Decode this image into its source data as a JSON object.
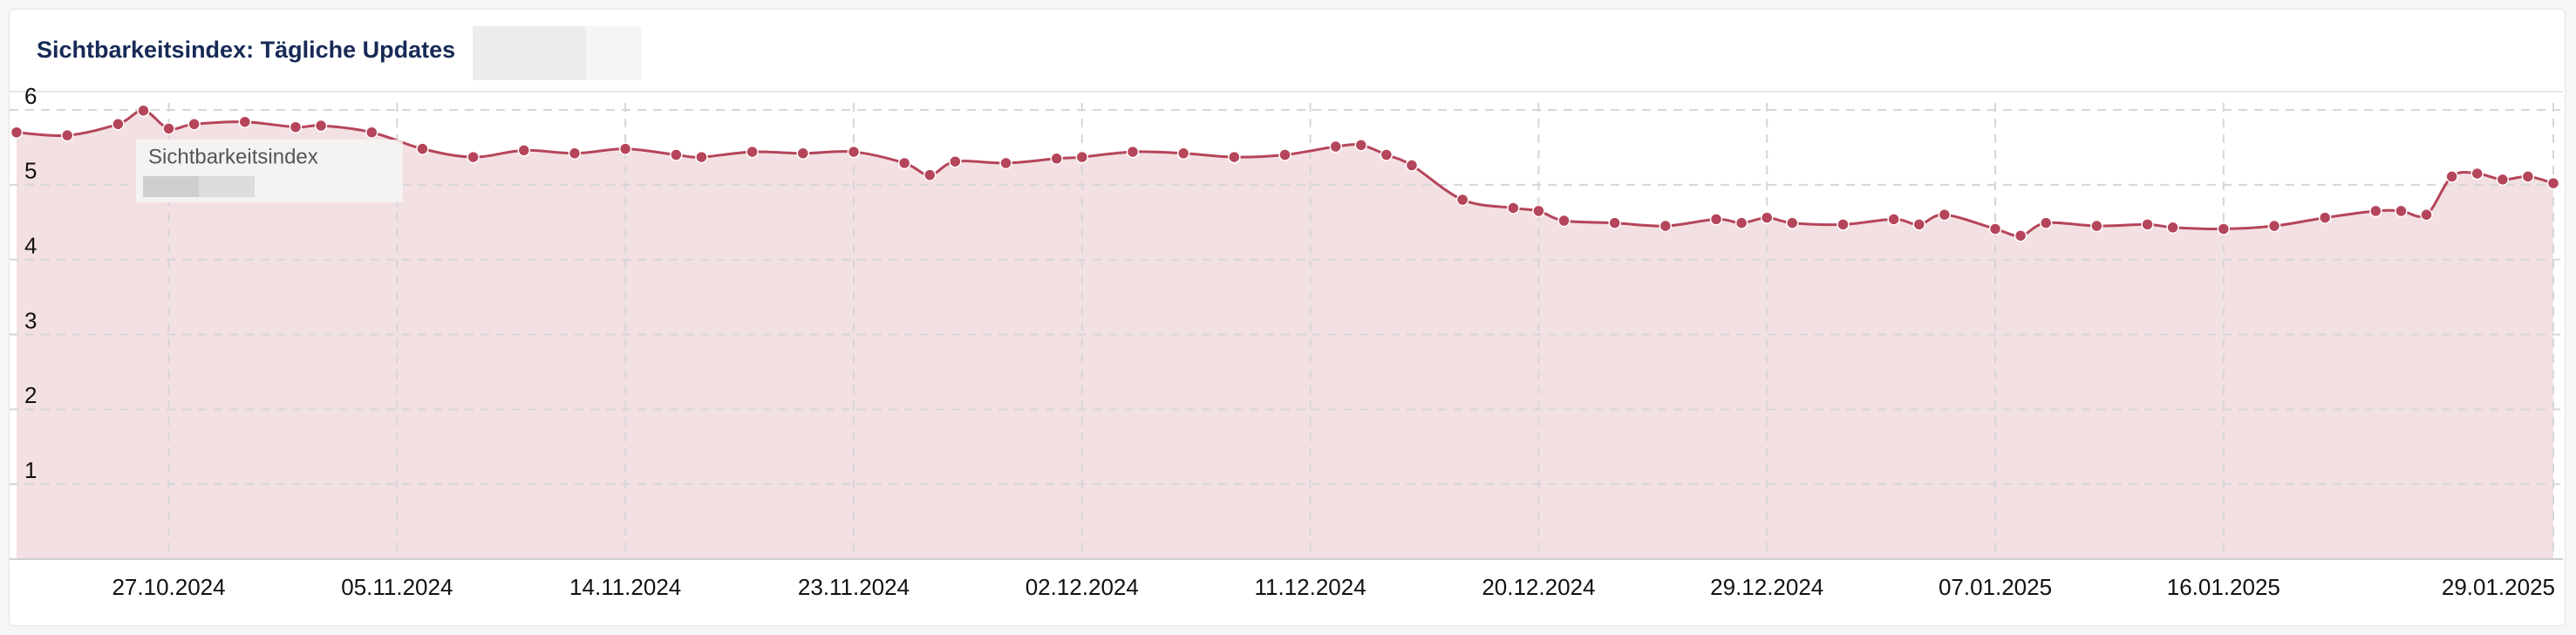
{
  "chart_data": {
    "type": "area",
    "title": "Sichtbarkeitsindex: Tägliche Updates",
    "series": [
      {
        "name": "Sichtbarkeitsindex",
        "color": "#b5455a",
        "x": [
          "21.10.2024",
          "23.10.2024",
          "25.10.2024",
          "26.10.2024",
          "27.10.2024",
          "28.10.2024",
          "30.10.2024",
          "01.11.2024",
          "02.11.2024",
          "04.11.2024",
          "06.11.2024",
          "08.11.2024",
          "10.11.2024",
          "12.11.2024",
          "14.11.2024",
          "16.11.2024",
          "17.11.2024",
          "19.11.2024",
          "21.11.2024",
          "23.11.2024",
          "25.11.2024",
          "26.11.2024",
          "27.11.2024",
          "29.11.2024",
          "01.12.2024",
          "02.12.2024",
          "04.12.2024",
          "06.12.2024",
          "08.12.2024",
          "10.12.2024",
          "12.12.2024",
          "13.12.2024",
          "14.12.2024",
          "15.12.2024",
          "17.12.2024",
          "19.12.2024",
          "20.12.2024",
          "21.12.2024",
          "23.12.2024",
          "25.12.2024",
          "27.12.2024",
          "28.12.2024",
          "29.12.2024",
          "30.12.2024",
          "01.01.2025",
          "03.01.2025",
          "04.01.2025",
          "05.01.2025",
          "07.01.2025",
          "08.01.2025",
          "09.01.2025",
          "11.01.2025",
          "13.01.2025",
          "14.01.2025",
          "16.01.2025",
          "18.01.2025",
          "20.01.2025",
          "22.01.2025",
          "23.01.2025",
          "24.01.2025",
          "25.01.2025",
          "26.01.2025",
          "27.01.2025",
          "28.01.2025",
          "29.01.2025"
        ],
        "values": [
          5.7,
          5.66,
          5.81,
          5.99,
          5.75,
          5.81,
          5.84,
          5.77,
          5.79,
          5.7,
          5.48,
          5.37,
          5.46,
          5.42,
          5.48,
          5.4,
          5.37,
          5.44,
          5.42,
          5.44,
          5.29,
          5.13,
          5.31,
          5.29,
          5.35,
          5.37,
          5.44,
          5.42,
          5.37,
          5.4,
          5.51,
          5.53,
          5.4,
          5.26,
          4.8,
          4.69,
          4.65,
          4.52,
          4.49,
          4.45,
          4.54,
          4.49,
          4.56,
          4.49,
          4.47,
          4.54,
          4.47,
          4.6,
          4.41,
          4.32,
          4.49,
          4.45,
          4.47,
          4.43,
          4.41,
          4.45,
          4.56,
          4.65,
          4.65,
          4.6,
          5.11,
          5.15,
          5.07,
          5.11,
          5.02
        ]
      }
    ],
    "xlim": [
      "21.10.2024",
      "29.01.2025"
    ],
    "xticks": [
      "27.10.2024",
      "05.11.2024",
      "14.11.2024",
      "23.11.2024",
      "02.12.2024",
      "11.12.2024",
      "20.12.2024",
      "29.12.2024",
      "07.01.2025",
      "16.01.2025",
      "29.01.2025"
    ],
    "ylim": [
      0,
      6
    ],
    "yticks": [
      1,
      2,
      3,
      4,
      5,
      6
    ],
    "grid": true
  }
}
